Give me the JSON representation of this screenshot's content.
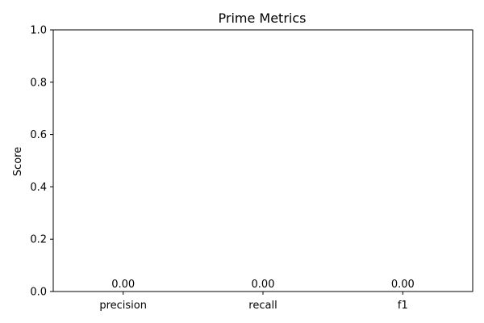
{
  "chart_data": {
    "type": "bar",
    "title": "Prime Metrics",
    "xlabel": "",
    "ylabel": "Score",
    "categories": [
      "precision",
      "recall",
      "f1"
    ],
    "values": [
      0.0,
      0.0,
      0.0
    ],
    "data_labels": [
      "0.00",
      "0.00",
      "0.00"
    ],
    "ylim": [
      0,
      1.0
    ],
    "yticks": [
      "0.0",
      "0.2",
      "0.4",
      "0.6",
      "0.8",
      "1.0"
    ],
    "grid": false,
    "legend": false,
    "bar_color": "#1f77b4"
  }
}
